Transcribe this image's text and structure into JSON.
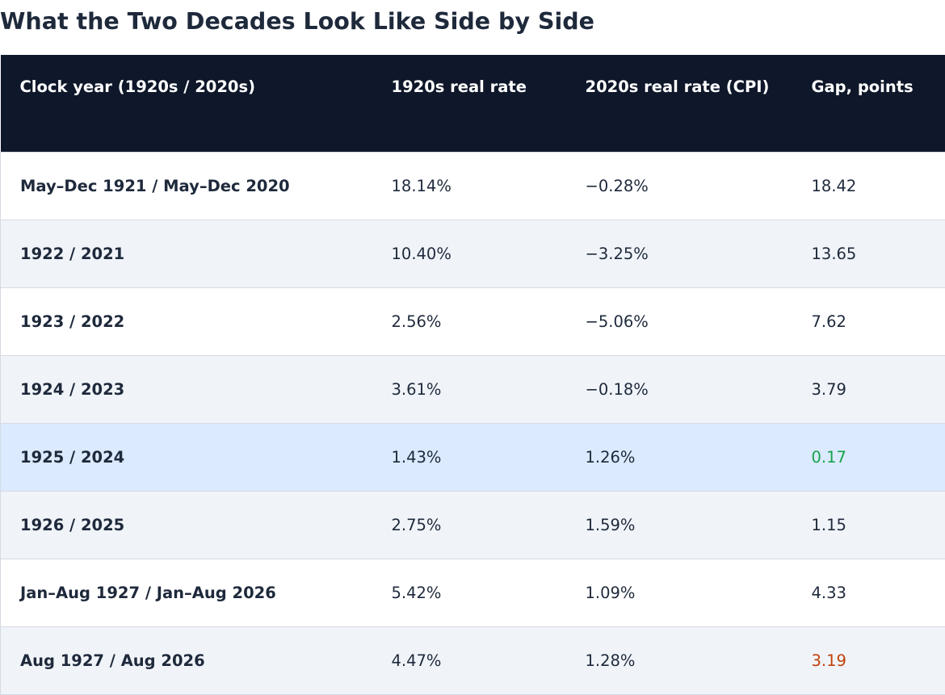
{
  "page": {
    "title": "What the Two Decades Look Like Side by Side"
  },
  "colors": {
    "header_bg": "#0f172a",
    "row_alt_bg": "#f0f4f9",
    "highlight_bg": "#dbeafe",
    "gap_good": "#16a34a",
    "gap_warn": "#c2410c",
    "text": "#1e293b"
  },
  "table": {
    "headers": [
      "Clock year (1920s / 2020s)",
      "1920s real rate",
      "2020s real rate (CPI)",
      "Gap, points"
    ],
    "rows": [
      {
        "year": "May–Dec 1921 / May–Dec 2020",
        "rate_1920s": "18.14%",
        "rate_2020s": "−0.28%",
        "gap": "18.42"
      },
      {
        "year": "1922 / 2021",
        "rate_1920s": "10.40%",
        "rate_2020s": "−3.25%",
        "gap": "13.65"
      },
      {
        "year": "1923 / 2022",
        "rate_1920s": "2.56%",
        "rate_2020s": "−5.06%",
        "gap": "7.62"
      },
      {
        "year": "1924 / 2023",
        "rate_1920s": "3.61%",
        "rate_2020s": "−0.18%",
        "gap": "3.79"
      },
      {
        "year": "1925 / 2024",
        "rate_1920s": "1.43%",
        "rate_2020s": "1.26%",
        "gap": "0.17"
      },
      {
        "year": "1926 / 2025",
        "rate_1920s": "2.75%",
        "rate_2020s": "1.59%",
        "gap": "1.15"
      },
      {
        "year": "Jan–Aug 1927 / Jan–Aug 2026",
        "rate_1920s": "5.42%",
        "rate_2020s": "1.09%",
        "gap": "4.33"
      },
      {
        "year": "Aug 1927 / Aug 2026",
        "rate_1920s": "4.47%",
        "rate_2020s": "1.28%",
        "gap": "3.19"
      }
    ]
  }
}
